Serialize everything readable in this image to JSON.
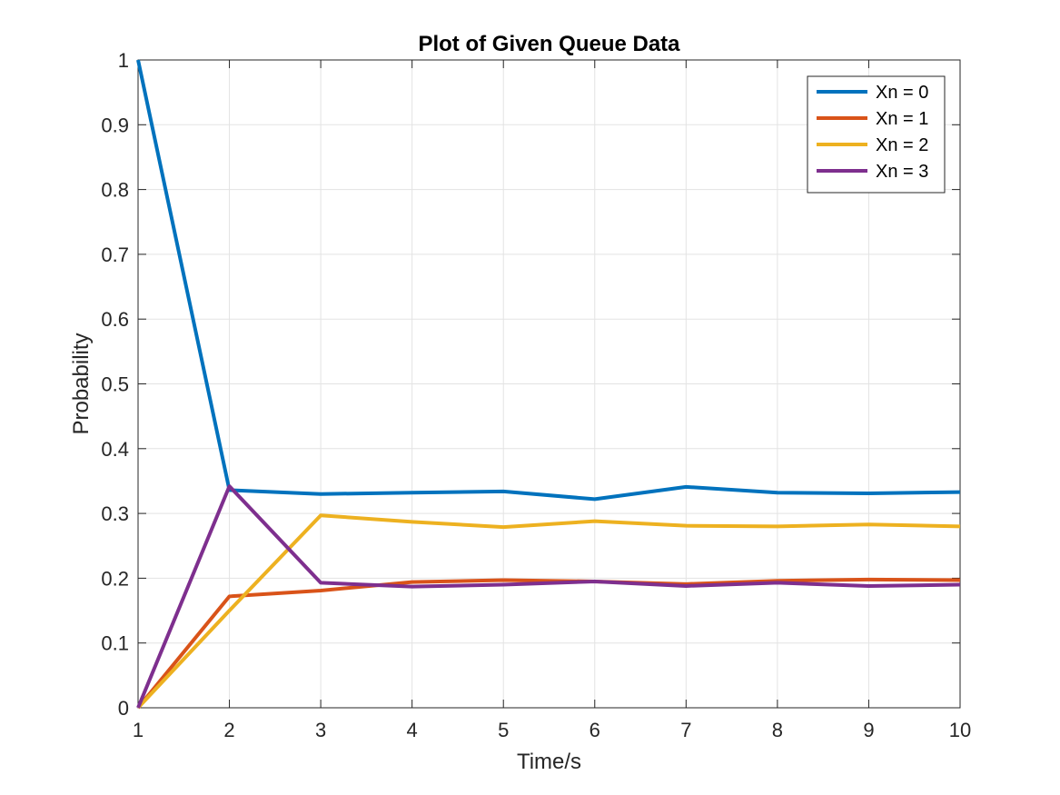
{
  "chart_data": {
    "type": "line",
    "title": "Plot of Given Queue Data",
    "xlabel": "Time/s",
    "ylabel": "Probability",
    "xlim": [
      1,
      10
    ],
    "ylim": [
      0,
      1
    ],
    "x": [
      1,
      2,
      3,
      4,
      5,
      6,
      7,
      8,
      9,
      10
    ],
    "xticks": [
      "1",
      "2",
      "3",
      "4",
      "5",
      "6",
      "7",
      "8",
      "9",
      "10"
    ],
    "yticks": [
      "0",
      "0.1",
      "0.2",
      "0.3",
      "0.4",
      "0.5",
      "0.6",
      "0.7",
      "0.8",
      "0.9",
      "1"
    ],
    "grid": true,
    "legend_position": "top-right",
    "series": [
      {
        "name": "Xn = 0",
        "color": "#0072BD",
        "values": [
          1.0,
          0.336,
          0.33,
          0.332,
          0.334,
          0.322,
          0.341,
          0.332,
          0.331,
          0.333
        ]
      },
      {
        "name": "Xn = 1",
        "color": "#D95319",
        "values": [
          0.0,
          0.172,
          0.181,
          0.194,
          0.197,
          0.195,
          0.191,
          0.196,
          0.198,
          0.197
        ]
      },
      {
        "name": "Xn = 2",
        "color": "#EDB120",
        "values": [
          0.0,
          0.15,
          0.297,
          0.287,
          0.279,
          0.288,
          0.281,
          0.28,
          0.283,
          0.28
        ]
      },
      {
        "name": "Xn = 3",
        "color": "#7E2F8E",
        "values": [
          0.0,
          0.342,
          0.193,
          0.187,
          0.19,
          0.195,
          0.188,
          0.193,
          0.188,
          0.19
        ]
      }
    ]
  }
}
